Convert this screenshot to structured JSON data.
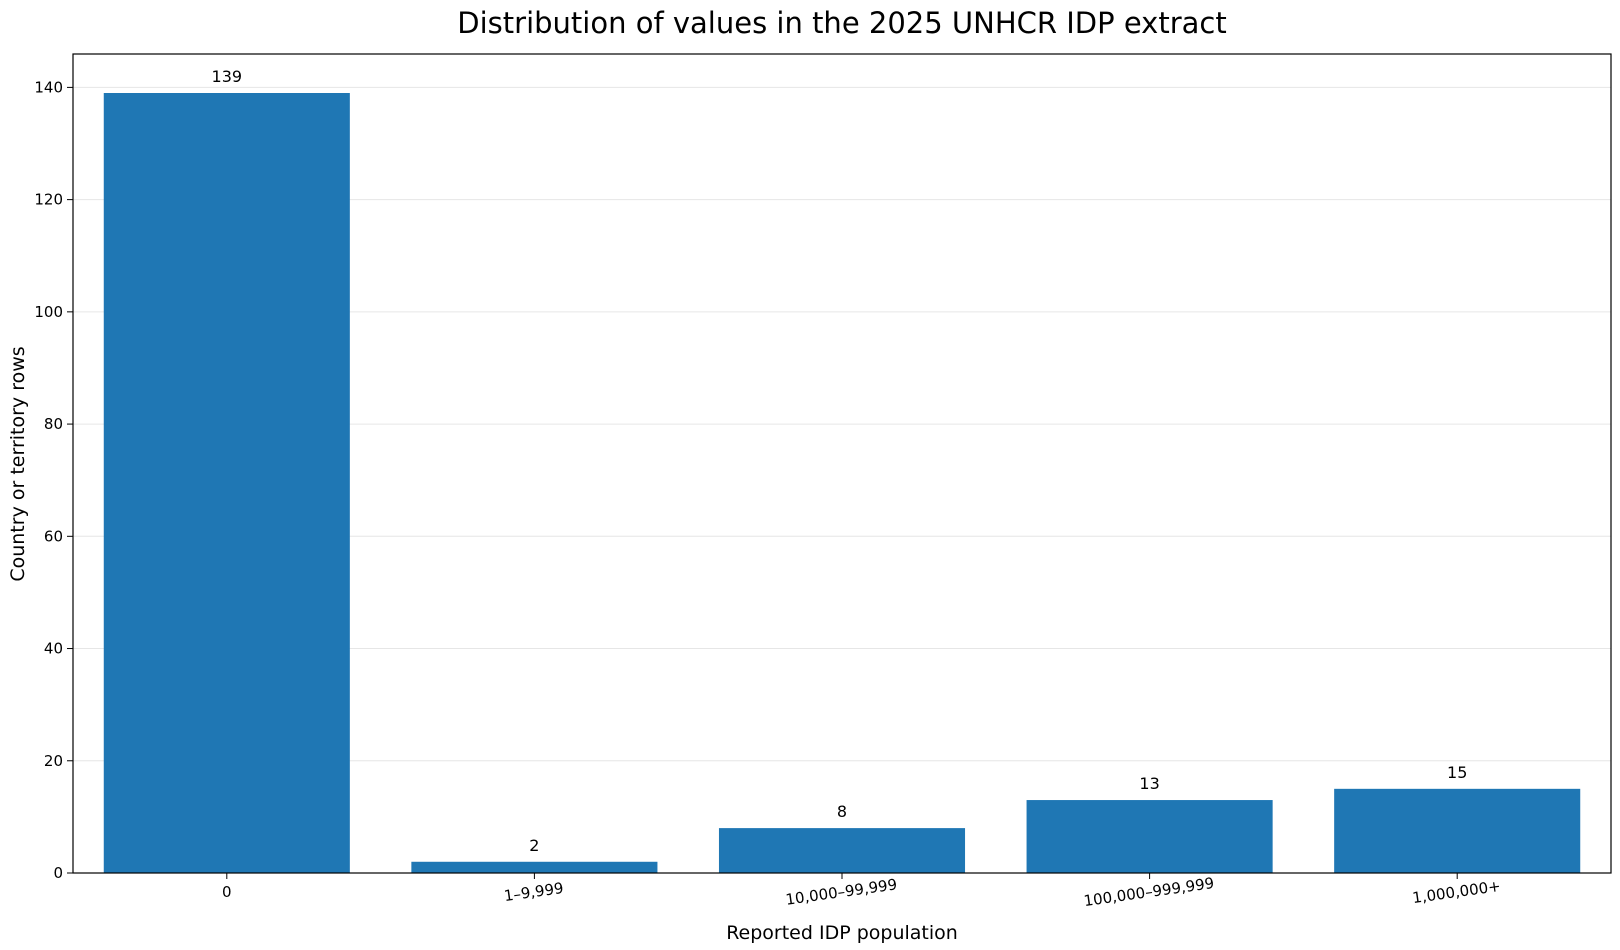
{
  "chart_data": {
    "type": "bar",
    "title": "Distribution of values in the 2025 UNHCR IDP extract",
    "xlabel": "Reported IDP population",
    "ylabel": "Country or territory rows",
    "categories": [
      "0",
      "1–9,999",
      "10,000–99,999",
      "100,000–999,999",
      "1,000,000+"
    ],
    "values": [
      139,
      2,
      8,
      13,
      15
    ],
    "ylim": [
      0,
      145.95
    ],
    "yticks": [
      0,
      20,
      40,
      60,
      80,
      100,
      120,
      140
    ],
    "x_tick_rotation_deg": -8,
    "grid": "horizontal",
    "legend": "none",
    "bar_color": "#1f77b4"
  }
}
